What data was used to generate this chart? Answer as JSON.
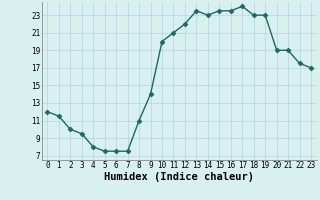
{
  "x": [
    0,
    1,
    2,
    3,
    4,
    5,
    6,
    7,
    8,
    9,
    10,
    11,
    12,
    13,
    14,
    15,
    16,
    17,
    18,
    19,
    20,
    21,
    22,
    23
  ],
  "y": [
    12.0,
    11.5,
    10.0,
    9.5,
    8.0,
    7.5,
    7.5,
    7.5,
    11.0,
    14.0,
    20.0,
    21.0,
    22.0,
    23.5,
    23.0,
    23.5,
    23.5,
    24.0,
    23.0,
    23.0,
    19.0,
    19.0,
    17.5,
    17.0
  ],
  "line_color": "#1a6b5a",
  "marker": "D",
  "marker_size": 2.5,
  "bg_color": "#d8f0ef",
  "grid_color": "#b8d4d4",
  "grid_color_minor": "#c8c8b0",
  "xlabel": "Humidex (Indice chaleur)",
  "xlabel_fontsize": 7.5,
  "yticks": [
    7,
    9,
    11,
    13,
    15,
    17,
    19,
    21,
    23
  ],
  "xticks": [
    0,
    1,
    2,
    3,
    4,
    5,
    6,
    7,
    8,
    9,
    10,
    11,
    12,
    13,
    14,
    15,
    16,
    17,
    18,
    19,
    20,
    21,
    22,
    23
  ],
  "ylim": [
    6.5,
    24.5
  ],
  "xlim": [
    -0.5,
    23.5
  ],
  "tick_fontsize": 5.5,
  "linewidth": 1.0
}
